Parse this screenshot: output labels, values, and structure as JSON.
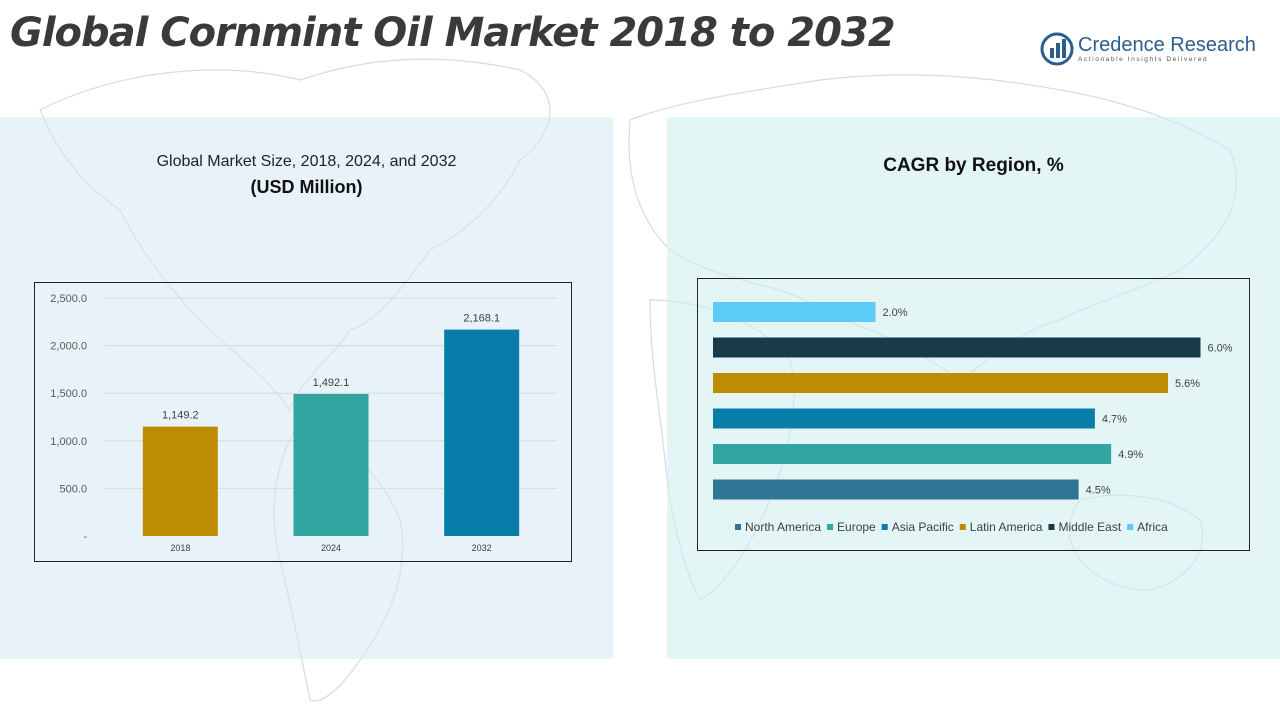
{
  "page": {
    "title": "Global Cornmint Oil Market 2018 to 2032"
  },
  "logo": {
    "name": "Credence Research",
    "tagline": "Actionable Insights Delivered",
    "icon": "credence-logo-icon"
  },
  "colors": {
    "gold": "#BE8C00",
    "teal": "#33A5A0",
    "blue": "#087DAA",
    "navy": "#173A47",
    "steel": "#2E7596",
    "sky": "#5BCCF5"
  },
  "chart_data": [
    {
      "type": "bar",
      "title": "Global Market Size, 2018, 2024, and 2032",
      "subtitle": "(USD Million)",
      "categories": [
        "2018",
        "2024",
        "2032"
      ],
      "values": [
        1149.2,
        1492.1,
        2168.1
      ],
      "value_labels": [
        "1,149.2",
        "1,492.1",
        "2,168.1"
      ],
      "bar_colors": [
        "#BE8C00",
        "#33A5A0",
        "#087DAA"
      ],
      "ylim": [
        0,
        2500
      ],
      "yticks": [
        0,
        500,
        1000,
        1500,
        2000,
        2500
      ],
      "ytick_labels": [
        "-",
        "500.0",
        "1,000.0",
        "1,500.0",
        "2,000.0",
        "2,500.0"
      ],
      "grid": true
    },
    {
      "type": "bar",
      "orientation": "horizontal",
      "title": "CAGR by Region, %",
      "series": [
        {
          "name": "North America",
          "value": 4.5,
          "label": "4.5%",
          "color": "#2E7596"
        },
        {
          "name": "Europe",
          "value": 4.9,
          "label": "4.9%",
          "color": "#33A5A0"
        },
        {
          "name": "Asia Pacific",
          "value": 4.7,
          "label": "4.7%",
          "color": "#087DAA"
        },
        {
          "name": "Latin America",
          "value": 5.6,
          "label": "5.6%",
          "color": "#BE8C00"
        },
        {
          "name": "Middle East",
          "value": 6.0,
          "label": "6.0%",
          "color": "#173A47"
        },
        {
          "name": "Africa",
          "value": 2.0,
          "label": "2.0%",
          "color": "#5BCCF5"
        }
      ],
      "xlim": [
        0,
        6.4
      ],
      "legend": "bottom",
      "grid": false
    }
  ]
}
